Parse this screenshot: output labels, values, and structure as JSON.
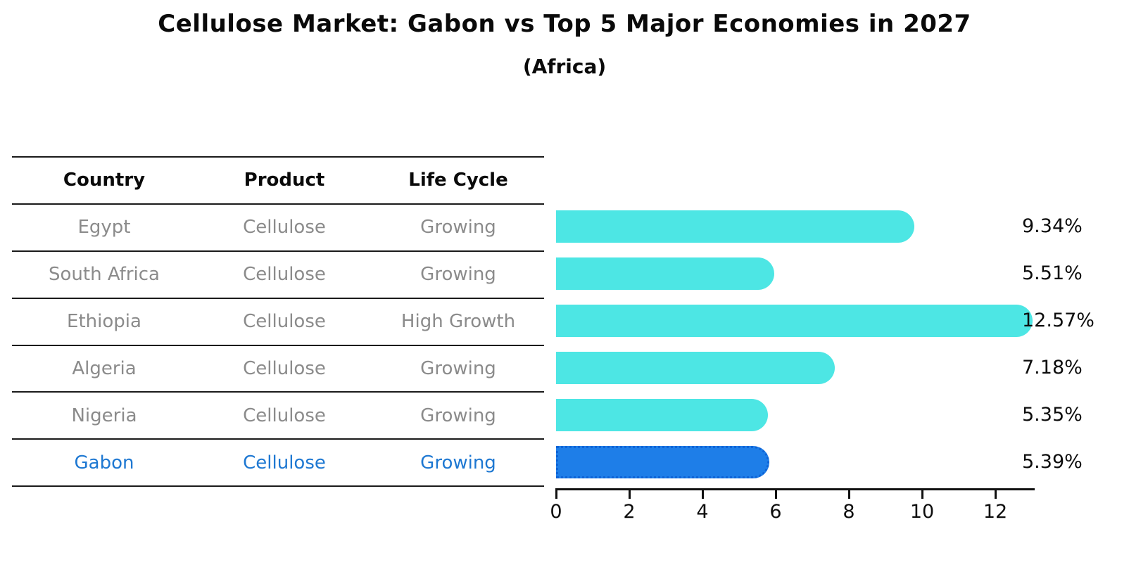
{
  "title": "Cellulose Market: Gabon vs Top 5 Major Economies in 2027",
  "subtitle": "(Africa)",
  "table": {
    "headers": [
      "Country",
      "Product",
      "Life Cycle"
    ],
    "rows": [
      {
        "country": "Egypt",
        "product": "Cellulose",
        "life_cycle": "Growing",
        "highlight": false
      },
      {
        "country": "South Africa",
        "product": "Cellulose",
        "life_cycle": "Growing",
        "highlight": false
      },
      {
        "country": "Ethiopia",
        "product": "Cellulose",
        "life_cycle": "High Growth",
        "highlight": false
      },
      {
        "country": "Algeria",
        "product": "Cellulose",
        "life_cycle": "Growing",
        "highlight": false
      },
      {
        "country": "Nigeria",
        "product": "Cellulose",
        "life_cycle": "Growing",
        "highlight": false
      },
      {
        "country": "Gabon",
        "product": "Cellulose",
        "life_cycle": "Growing",
        "highlight": true
      }
    ]
  },
  "chart_data": {
    "type": "bar",
    "orientation": "horizontal",
    "title": "Cellulose Market: Gabon vs Top 5 Major Economies in 2027",
    "subtitle": "(Africa)",
    "categories": [
      "Egypt",
      "South Africa",
      "Ethiopia",
      "Algeria",
      "Nigeria",
      "Gabon"
    ],
    "values": [
      9.34,
      5.51,
      12.57,
      7.18,
      5.35,
      5.39
    ],
    "value_labels": [
      "9.34%",
      "5.51%",
      "12.57%",
      "7.18%",
      "5.35%",
      "5.39%"
    ],
    "xlabel": "",
    "ylabel": "",
    "xlim": [
      0,
      13.1
    ],
    "x_ticks": [
      0,
      2,
      4,
      6,
      8,
      10,
      12
    ],
    "grid": false,
    "legend": "none",
    "highlight_index": 5
  },
  "colors": {
    "bar": "#4DE6E4",
    "highlight_bar": "#1E7EE8",
    "highlight_bar_border": "#0E63D6",
    "row_text": "#8B8B8B",
    "highlight_text": "#1E78D2",
    "axis": "#111111",
    "text": "#0A0A0A"
  }
}
